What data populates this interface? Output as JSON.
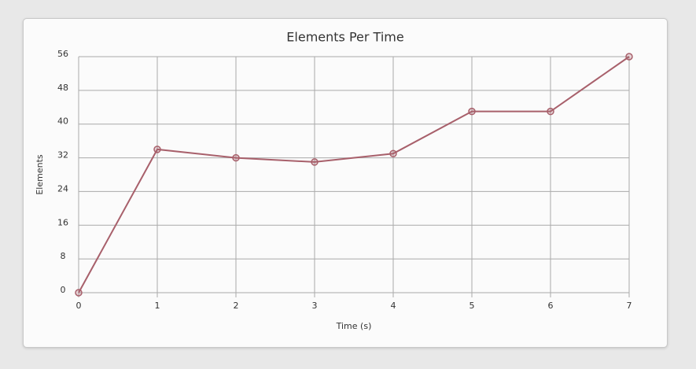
{
  "chart_data": {
    "type": "line",
    "title": "Elements Per Time",
    "x_label": "Time (s)",
    "y_label": "Elements",
    "x": [
      0,
      1,
      2,
      3,
      4,
      5,
      6,
      7
    ],
    "series": [
      {
        "name": "Elements",
        "color": "#a8606b",
        "values": [
          0,
          34,
          32,
          31,
          33,
          43,
          43,
          56
        ]
      }
    ],
    "xlim": [
      0,
      7
    ],
    "xticks": [
      0,
      1,
      2,
      3,
      4,
      5,
      6,
      7
    ],
    "ylim": [
      0,
      56
    ],
    "yticks": [
      0,
      8,
      16,
      24,
      32,
      40,
      48,
      56
    ],
    "grid": true
  }
}
